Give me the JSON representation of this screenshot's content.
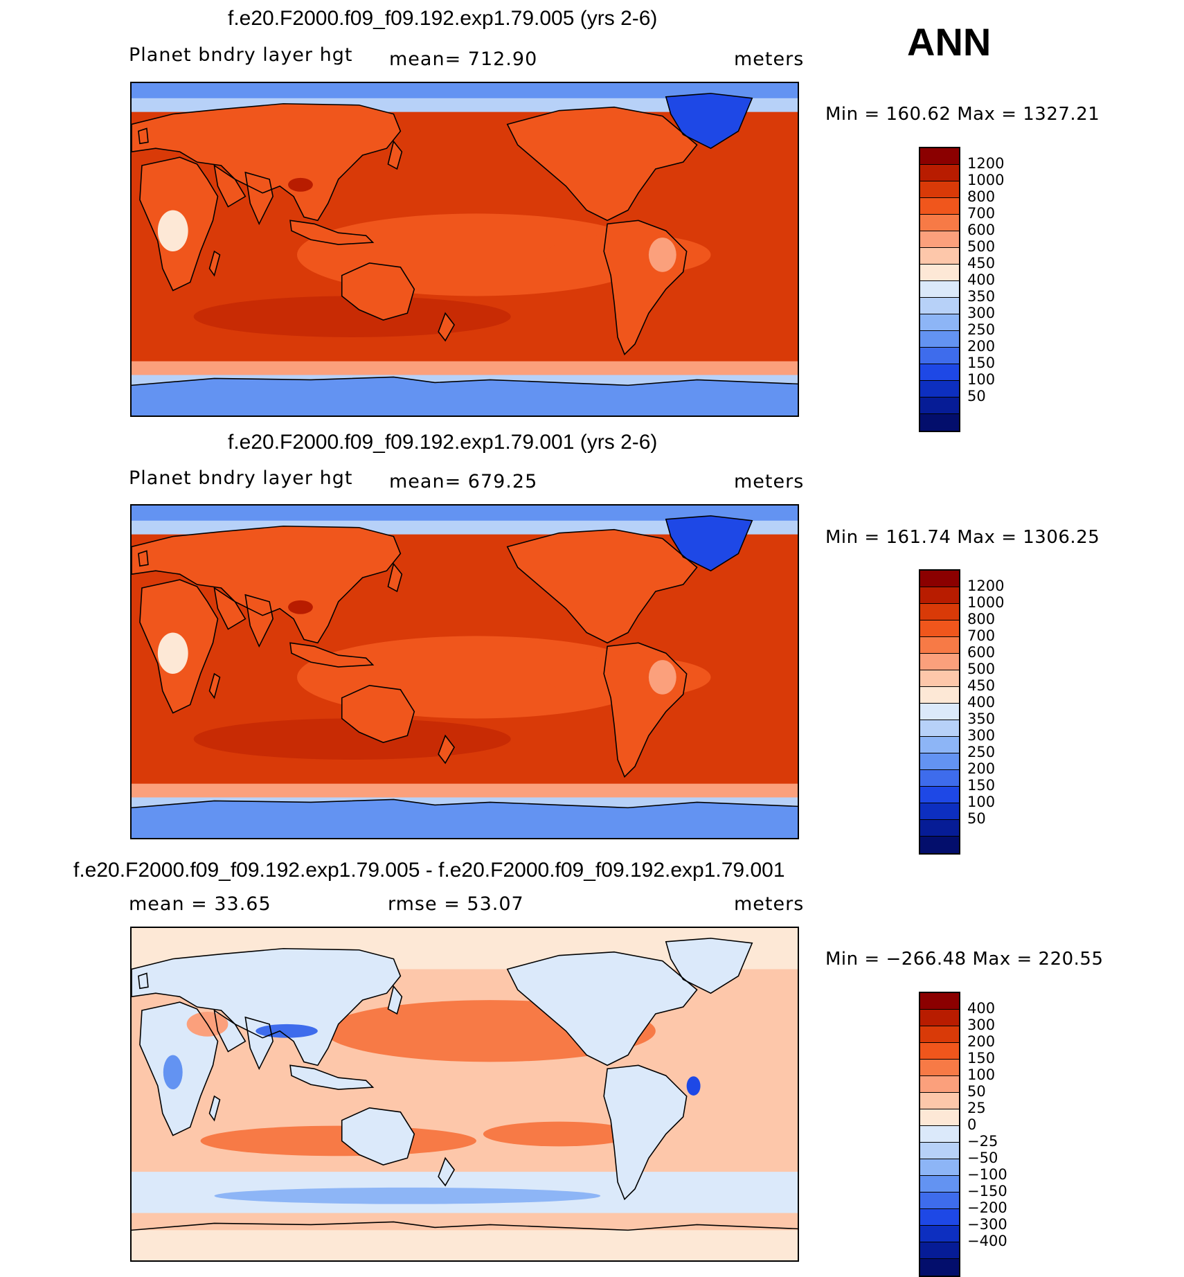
{
  "season": "ANN",
  "panels": [
    {
      "title": "f.e20.F2000.f09_f09.192.exp1.79.005 (yrs 2-6)",
      "left_label": "Planet bndry layer hgt",
      "center_label": "mean= 712.90",
      "units": "meters",
      "minmax": "Min = 160.62 Max = 1327.21",
      "map_kind": "field",
      "legend_colors": [
        "#8b0000",
        "#b81c00",
        "#d93a08",
        "#f0561c",
        "#f77a46",
        "#fba07c",
        "#fdc7aa",
        "#fde8d6",
        "#dbe9fa",
        "#b7d1f8",
        "#8db5f6",
        "#6393f2",
        "#3e6cec",
        "#1e48e6",
        "#0d2fc0",
        "#061c96",
        "#030e6c"
      ],
      "legend_labels": [
        "1200",
        "1000",
        "800",
        "700",
        "600",
        "500",
        "450",
        "400",
        "350",
        "300",
        "250",
        "200",
        "150",
        "100",
        "50"
      ]
    },
    {
      "title": "f.e20.F2000.f09_f09.192.exp1.79.001 (yrs 2-6)",
      "left_label": "Planet bndry layer hgt",
      "center_label": "mean= 679.25",
      "units": "meters",
      "minmax": "Min = 161.74 Max = 1306.25",
      "map_kind": "field",
      "legend_colors": [
        "#8b0000",
        "#b81c00",
        "#d93a08",
        "#f0561c",
        "#f77a46",
        "#fba07c",
        "#fdc7aa",
        "#fde8d6",
        "#dbe9fa",
        "#b7d1f8",
        "#8db5f6",
        "#6393f2",
        "#3e6cec",
        "#1e48e6",
        "#0d2fc0",
        "#061c96",
        "#030e6c"
      ],
      "legend_labels": [
        "1200",
        "1000",
        "800",
        "700",
        "600",
        "500",
        "450",
        "400",
        "350",
        "300",
        "250",
        "200",
        "150",
        "100",
        "50"
      ]
    },
    {
      "title": "f.e20.F2000.f09_f09.192.exp1.79.005 - f.e20.F2000.f09_f09.192.exp1.79.001",
      "left_label": "mean =   33.65",
      "center_label": "rmse =   53.07",
      "units": "meters",
      "minmax": "Min = −266.48 Max = 220.55",
      "map_kind": "diff",
      "legend_colors": [
        "#8b0000",
        "#b81c00",
        "#d93a08",
        "#f0561c",
        "#f77a46",
        "#fba07c",
        "#fdc7aa",
        "#fde8d6",
        "#dbe9fa",
        "#b7d1f8",
        "#8db5f6",
        "#6393f2",
        "#3e6cec",
        "#1e48e6",
        "#0d2fc0",
        "#061c96",
        "#030e6c"
      ],
      "legend_labels": [
        "400",
        "300",
        "200",
        "150",
        "100",
        "50",
        "25",
        "0",
        "−25",
        "−50",
        "−100",
        "−150",
        "−200",
        "−300",
        "−400"
      ]
    }
  ]
}
